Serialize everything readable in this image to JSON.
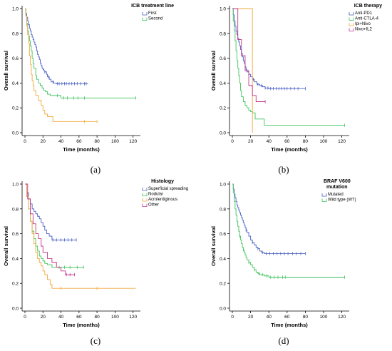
{
  "panels": [
    {
      "caption": "(a)"
    },
    {
      "caption": "(b)"
    },
    {
      "caption": "(c)"
    },
    {
      "caption": "(d)"
    }
  ],
  "chart_data": [
    {
      "type": "line",
      "subtype": "kaplan-meier step",
      "xlabel": "Time (months)",
      "ylabel": "Overall survival",
      "xticks": [
        0,
        20,
        40,
        60,
        80,
        100,
        120
      ],
      "yticks": [
        0.0,
        0.2,
        0.4,
        0.6,
        0.8,
        1.0
      ],
      "xlim": [
        0,
        125
      ],
      "ylim": [
        0,
        1.0
      ],
      "legend_title": "ICB treatment line",
      "legend_position": "top-right",
      "series": [
        {
          "name": "First",
          "color": "#4a60c4",
          "x": [
            0,
            1,
            2,
            3,
            4,
            5,
            6,
            7,
            8,
            9,
            10,
            11,
            12,
            13,
            14,
            15,
            16,
            17,
            18,
            19,
            20,
            21,
            22,
            24,
            25,
            27,
            29,
            32,
            35,
            37,
            40,
            50,
            60,
            70
          ],
          "y": [
            1.0,
            0.96,
            0.93,
            0.9,
            0.87,
            0.84,
            0.82,
            0.79,
            0.77,
            0.75,
            0.73,
            0.71,
            0.69,
            0.66,
            0.63,
            0.61,
            0.59,
            0.56,
            0.54,
            0.52,
            0.51,
            0.5,
            0.49,
            0.47,
            0.45,
            0.43,
            0.41,
            0.4,
            0.395,
            0.395,
            0.395,
            0.395,
            0.395,
            0.395
          ],
          "censor_x": [
            22,
            26,
            31,
            36,
            38,
            41,
            44,
            46,
            49,
            52,
            55,
            58,
            62,
            66,
            68
          ]
        },
        {
          "name": "Second",
          "color": "#3fc35c",
          "x": [
            0,
            1,
            2,
            3,
            4,
            5,
            6,
            7,
            8,
            9,
            10,
            12,
            13,
            15,
            17,
            19,
            21,
            23,
            25,
            28,
            33,
            38,
            40,
            50,
            65,
            80,
            100,
            123
          ],
          "y": [
            1.0,
            0.94,
            0.88,
            0.82,
            0.78,
            0.74,
            0.7,
            0.66,
            0.6,
            0.56,
            0.52,
            0.46,
            0.43,
            0.4,
            0.38,
            0.36,
            0.34,
            0.33,
            0.31,
            0.3,
            0.3,
            0.3,
            0.28,
            0.28,
            0.28,
            0.28,
            0.28,
            0.28
          ],
          "censor_x": [
            36,
            43,
            47,
            54,
            59,
            66,
            123
          ]
        },
        {
          "name": "",
          "color": "#f2a63a",
          "x": [
            0,
            1,
            2,
            3,
            4,
            5,
            6,
            7,
            8,
            9,
            10,
            12,
            15,
            18,
            20,
            22,
            25,
            28,
            31,
            35,
            45,
            60,
            80
          ],
          "y": [
            1.0,
            0.94,
            0.86,
            0.79,
            0.72,
            0.62,
            0.55,
            0.47,
            0.42,
            0.38,
            0.34,
            0.3,
            0.26,
            0.22,
            0.18,
            0.15,
            0.13,
            0.13,
            0.09,
            0.09,
            0.09,
            0.09,
            0.09
          ],
          "censor_x": [
            66,
            80
          ]
        }
      ]
    },
    {
      "type": "line",
      "subtype": "kaplan-meier step",
      "xlabel": "Time (months)",
      "ylabel": "Overall survival",
      "xticks": [
        0,
        20,
        40,
        60,
        80,
        100,
        120
      ],
      "yticks": [
        0.0,
        0.2,
        0.4,
        0.6,
        0.8,
        1.0
      ],
      "xlim": [
        0,
        125
      ],
      "ylim": [
        0,
        1.0
      ],
      "legend_title": "ICB therapy",
      "legend_position": "top-right",
      "series": [
        {
          "name": "Anti-PD1",
          "color": "#4a60c4",
          "x": [
            0,
            1,
            2,
            3,
            4,
            5,
            6,
            7,
            8,
            9,
            10,
            11,
            12,
            13,
            14,
            15,
            16,
            18,
            20,
            22,
            24,
            27,
            30,
            33,
            36,
            40,
            50,
            60,
            80
          ],
          "y": [
            1.0,
            0.95,
            0.9,
            0.86,
            0.82,
            0.79,
            0.76,
            0.73,
            0.7,
            0.67,
            0.64,
            0.61,
            0.58,
            0.56,
            0.53,
            0.51,
            0.49,
            0.47,
            0.45,
            0.43,
            0.41,
            0.39,
            0.38,
            0.37,
            0.36,
            0.355,
            0.355,
            0.355,
            0.355
          ],
          "censor_x": [
            23,
            28,
            32,
            36,
            39,
            42,
            45,
            48,
            51,
            54,
            57,
            60,
            64,
            68,
            72,
            80
          ]
        },
        {
          "name": "Anti-CTLA-4",
          "color": "#3fc35c",
          "x": [
            0,
            1,
            2,
            3,
            4,
            5,
            6,
            7,
            8,
            9,
            10,
            12,
            14,
            16,
            18,
            20,
            22,
            25,
            30,
            35,
            40,
            60,
            80,
            100,
            123
          ],
          "y": [
            1.0,
            0.9,
            0.82,
            0.74,
            0.66,
            0.58,
            0.52,
            0.46,
            0.4,
            0.34,
            0.29,
            0.25,
            0.22,
            0.2,
            0.18,
            0.17,
            0.16,
            0.11,
            0.11,
            0.06,
            0.06,
            0.06,
            0.06,
            0.06,
            0.06
          ],
          "censor_x": [
            123
          ]
        },
        {
          "name": "Ipi+Nivo",
          "color": "#f2a63a",
          "x": [
            0,
            22,
            22
          ],
          "y": [
            1.0,
            1.0,
            0.0
          ],
          "censor_x": []
        },
        {
          "name": "Nivo+IL2",
          "color": "#c2338a",
          "x": [
            0,
            6,
            10,
            14,
            18,
            22,
            26,
            36
          ],
          "y": [
            1.0,
            0.75,
            0.62,
            0.5,
            0.38,
            0.3,
            0.25,
            0.25
          ],
          "censor_x": [
            36
          ]
        }
      ]
    },
    {
      "type": "line",
      "subtype": "kaplan-meier step",
      "xlabel": "Time (months)",
      "ylabel": "Overall survival",
      "xticks": [
        0,
        20,
        40,
        60,
        80,
        100,
        120
      ],
      "yticks": [
        0.0,
        0.2,
        0.4,
        0.6,
        0.8,
        1.0
      ],
      "xlim": [
        0,
        125
      ],
      "ylim": [
        0,
        1.0
      ],
      "legend_title": "Histology",
      "legend_position": "top-right",
      "series": [
        {
          "name": "Superficial spreading",
          "color": "#4a60c4",
          "x": [
            0,
            2,
            4,
            6,
            8,
            10,
            12,
            14,
            16,
            18,
            20,
            22,
            24,
            27,
            30,
            40,
            57
          ],
          "y": [
            1.0,
            0.93,
            0.88,
            0.84,
            0.8,
            0.78,
            0.76,
            0.74,
            0.72,
            0.69,
            0.66,
            0.63,
            0.6,
            0.58,
            0.55,
            0.55,
            0.55
          ],
          "censor_x": [
            31,
            35,
            40,
            44,
            48,
            52,
            57
          ]
        },
        {
          "name": "Nodular",
          "color": "#3fc35c",
          "x": [
            0,
            2,
            4,
            6,
            8,
            10,
            12,
            14,
            16,
            18,
            20,
            22,
            25,
            30,
            40,
            50,
            65
          ],
          "y": [
            1.0,
            0.9,
            0.8,
            0.7,
            0.62,
            0.56,
            0.5,
            0.46,
            0.42,
            0.4,
            0.38,
            0.36,
            0.35,
            0.33,
            0.33,
            0.33,
            0.33
          ],
          "censor_x": [
            38,
            44,
            50,
            58,
            65
          ]
        },
        {
          "name": "Acrolentiginous",
          "color": "#f2a63a",
          "x": [
            0,
            2,
            4,
            6,
            8,
            10,
            12,
            14,
            16,
            18,
            20,
            22,
            25,
            28,
            30,
            40,
            60,
            80,
            100,
            123
          ],
          "y": [
            1.0,
            0.9,
            0.8,
            0.7,
            0.6,
            0.52,
            0.45,
            0.4,
            0.37,
            0.34,
            0.3,
            0.27,
            0.23,
            0.19,
            0.16,
            0.16,
            0.16,
            0.16,
            0.16,
            0.16
          ],
          "censor_x": [
            40,
            80
          ]
        },
        {
          "name": "Other",
          "color": "#c2338a",
          "x": [
            0,
            3,
            6,
            9,
            12,
            15,
            18,
            20,
            25,
            30,
            35,
            40,
            45,
            50,
            55
          ],
          "y": [
            1.0,
            0.88,
            0.76,
            0.68,
            0.6,
            0.56,
            0.5,
            0.45,
            0.4,
            0.37,
            0.33,
            0.3,
            0.27,
            0.27,
            0.27
          ],
          "censor_x": [
            46,
            50,
            55
          ]
        }
      ]
    },
    {
      "type": "line",
      "subtype": "kaplan-meier step",
      "xlabel": "Time (months)",
      "ylabel": "Overall survival",
      "xticks": [
        0,
        20,
        40,
        60,
        80,
        100,
        120
      ],
      "yticks": [
        0.0,
        0.2,
        0.4,
        0.6,
        0.8,
        1.0
      ],
      "xlim": [
        0,
        125
      ],
      "ylim": [
        0,
        1.0
      ],
      "legend_title": "BRAF V600 mutation",
      "legend_position": "top-right",
      "series": [
        {
          "name": "Mutated",
          "color": "#4a60c4",
          "x": [
            0,
            1,
            2,
            3,
            4,
            5,
            6,
            7,
            8,
            9,
            10,
            11,
            12,
            13,
            14,
            15,
            16,
            18,
            20,
            22,
            24,
            26,
            28,
            30,
            32,
            35,
            40,
            60,
            80
          ],
          "y": [
            1.0,
            0.96,
            0.92,
            0.89,
            0.86,
            0.83,
            0.81,
            0.79,
            0.77,
            0.75,
            0.73,
            0.71,
            0.69,
            0.67,
            0.65,
            0.63,
            0.61,
            0.58,
            0.55,
            0.53,
            0.51,
            0.49,
            0.48,
            0.46,
            0.45,
            0.44,
            0.44,
            0.44,
            0.44
          ],
          "censor_x": [
            15,
            22,
            28,
            33,
            37,
            41,
            45,
            49,
            53,
            57,
            61,
            66,
            70,
            75,
            80
          ]
        },
        {
          "name": "Wild type (WT)",
          "color": "#3fc35c",
          "x": [
            0,
            1,
            2,
            3,
            4,
            5,
            6,
            7,
            8,
            9,
            10,
            11,
            12,
            13,
            14,
            15,
            16,
            18,
            20,
            22,
            24,
            26,
            28,
            30,
            35,
            40,
            60,
            80,
            100,
            123
          ],
          "y": [
            1.0,
            0.93,
            0.86,
            0.8,
            0.75,
            0.7,
            0.66,
            0.62,
            0.58,
            0.55,
            0.52,
            0.49,
            0.47,
            0.45,
            0.43,
            0.41,
            0.39,
            0.37,
            0.35,
            0.33,
            0.31,
            0.29,
            0.28,
            0.27,
            0.26,
            0.25,
            0.25,
            0.25,
            0.25,
            0.25
          ],
          "censor_x": [
            8,
            12,
            18,
            24,
            29,
            33,
            38,
            42,
            46,
            50,
            55,
            58,
            123
          ]
        }
      ]
    }
  ]
}
